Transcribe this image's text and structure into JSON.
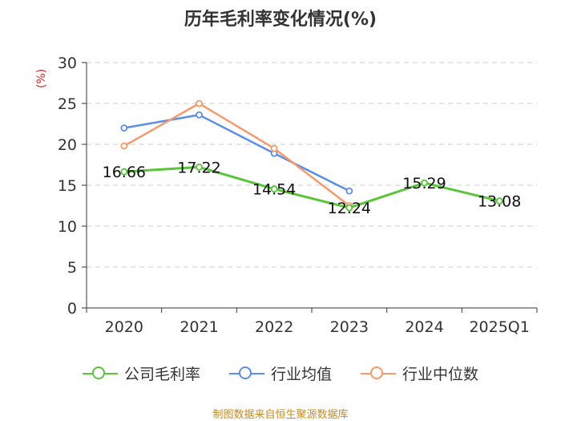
{
  "chart_data": {
    "type": "line",
    "title": "历年毛利率变化情况(%)",
    "ylabel": "(%)",
    "xlabel": "",
    "categories": [
      "2020",
      "2021",
      "2022",
      "2023",
      "2024",
      "2025Q1"
    ],
    "ylim": [
      0,
      30
    ],
    "yticks": [
      0,
      5,
      10,
      15,
      20,
      25,
      30
    ],
    "grid": true,
    "legend_position": "bottom",
    "series": [
      {
        "name": "公司毛利率",
        "color": "#5ac43a",
        "values": [
          16.66,
          17.22,
          14.54,
          12.24,
          15.29,
          13.08
        ],
        "show_labels": true
      },
      {
        "name": "行业均值",
        "color": "#5b8ee6",
        "values": [
          22.0,
          23.6,
          18.9,
          14.3,
          null,
          null
        ],
        "show_labels": false
      },
      {
        "name": "行业中位数",
        "color": "#f59a6a",
        "values": [
          19.8,
          25.0,
          19.5,
          12.5,
          null,
          null
        ],
        "show_labels": false
      }
    ]
  },
  "source": "制图数据来自恒生聚源数据库"
}
